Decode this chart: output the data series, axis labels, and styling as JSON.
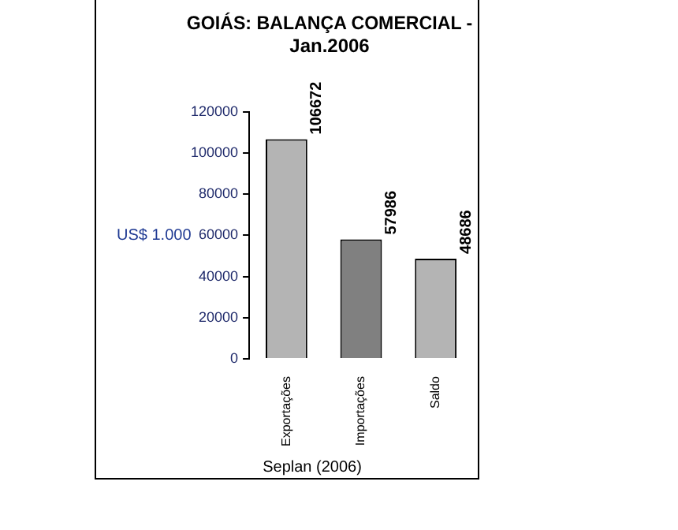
{
  "chart_data": {
    "type": "bar",
    "title": "GOIÁS: BALANÇA COMERCIAL - Jan.2006",
    "ylabel": "US$ 1.000",
    "categories": [
      "Exportações",
      "Importações",
      "Saldo"
    ],
    "values": [
      106672,
      57986,
      48686
    ],
    "colors": [
      "#b4b4b4",
      "#808080",
      "#b4b4b4"
    ],
    "ylim": [
      0,
      120000
    ],
    "yticks": [
      0,
      20000,
      40000,
      60000,
      80000,
      100000,
      120000
    ],
    "data_labels": true,
    "legend": false,
    "annotations": [
      "Seplan (2006)"
    ]
  }
}
